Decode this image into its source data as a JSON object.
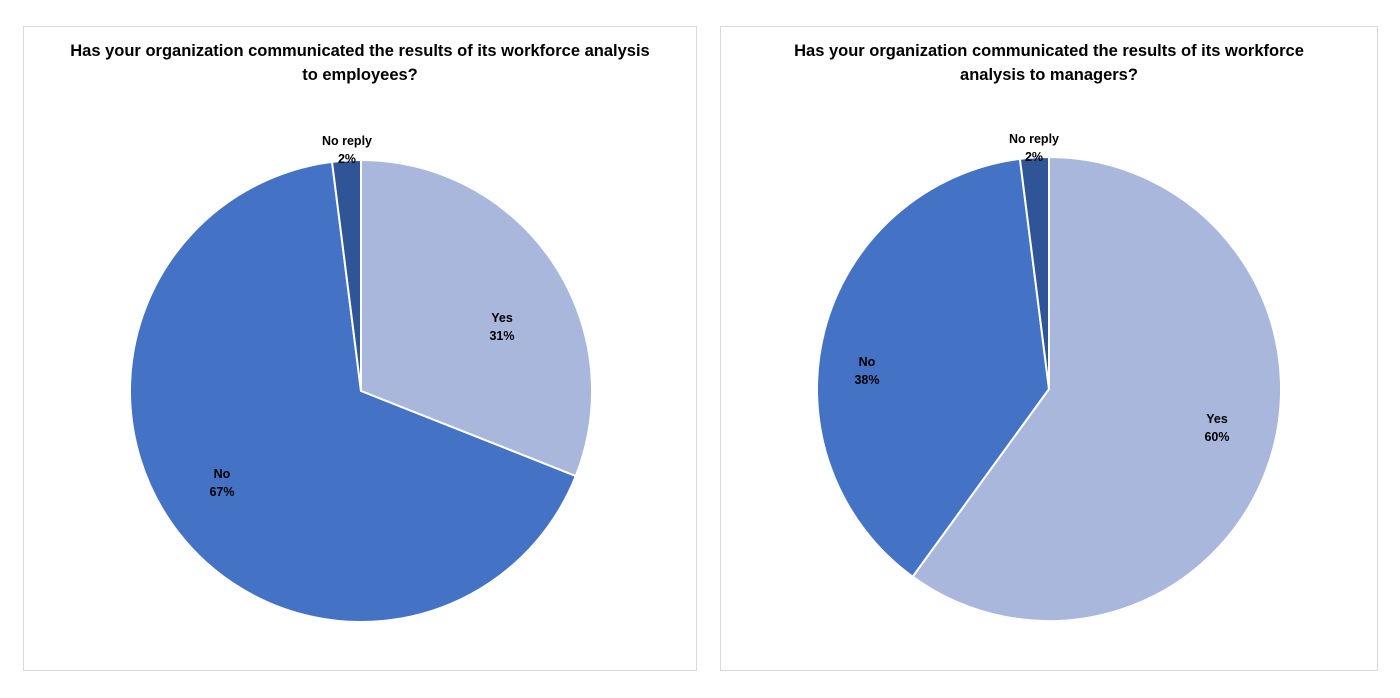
{
  "chart_data": [
    {
      "type": "pie",
      "title": "Has your organization communicated the results of its workforce analysis to employees?",
      "slices": [
        {
          "label": "Yes",
          "value": 31,
          "value_label": "31%",
          "color": "#a9b7dc"
        },
        {
          "label": "No",
          "value": 67,
          "value_label": "67%",
          "color": "#4472c4"
        },
        {
          "label": "No reply",
          "value": 2,
          "value_label": "2%",
          "color": "#2f5597"
        }
      ],
      "start_angle_deg": 0,
      "direction": "clockwise",
      "legend": "none"
    },
    {
      "type": "pie",
      "title": "Has your organization communicated the results of its workforce analysis to managers?",
      "slices": [
        {
          "label": "Yes",
          "value": 60,
          "value_label": "60%",
          "color": "#a9b7dc"
        },
        {
          "label": "No",
          "value": 38,
          "value_label": "38%",
          "color": "#4472c4"
        },
        {
          "label": "No reply",
          "value": 2,
          "value_label": "2%",
          "color": "#2f5597"
        }
      ],
      "start_angle_deg": 0,
      "direction": "clockwise",
      "legend": "none"
    }
  ]
}
